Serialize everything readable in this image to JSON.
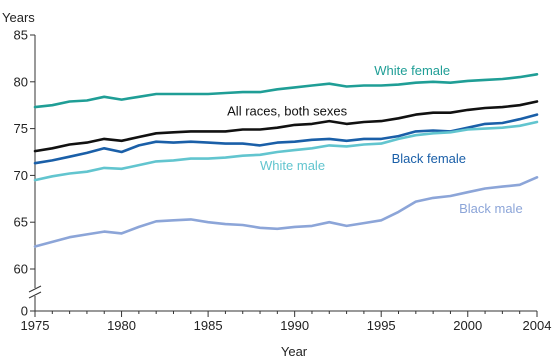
{
  "chart_data": {
    "type": "line",
    "title": "",
    "xlabel": "Year",
    "ylabel": "Years",
    "xlim": [
      1975,
      2004
    ],
    "ylim": [
      0,
      85
    ],
    "axis_break": [
      0,
      60
    ],
    "grid": false,
    "x_ticks": [
      1975,
      1980,
      1985,
      1990,
      1995,
      2000,
      2004
    ],
    "y_ticks": [
      0,
      60,
      65,
      70,
      75,
      80,
      85
    ],
    "x": [
      1975,
      1976,
      1977,
      1978,
      1979,
      1980,
      1981,
      1982,
      1983,
      1984,
      1985,
      1986,
      1987,
      1988,
      1989,
      1990,
      1991,
      1992,
      1993,
      1994,
      1995,
      1996,
      1997,
      1998,
      1999,
      2000,
      2001,
      2002,
      2003,
      2004
    ],
    "series": [
      {
        "name": "White female",
        "color": "#1f9e96",
        "label_pos": [
          1994.6,
          80.75
        ],
        "values": [
          77.3,
          77.5,
          77.9,
          78.0,
          78.4,
          78.1,
          78.4,
          78.7,
          78.7,
          78.7,
          78.7,
          78.8,
          78.9,
          78.9,
          79.2,
          79.4,
          79.6,
          79.8,
          79.5,
          79.6,
          79.6,
          79.7,
          79.9,
          80.0,
          79.9,
          80.1,
          80.2,
          80.3,
          80.5,
          80.8
        ]
      },
      {
        "name": "All races, both sexes",
        "color": "#111111",
        "label_pos": [
          1986.1,
          76.4
        ],
        "values": [
          72.6,
          72.9,
          73.3,
          73.5,
          73.9,
          73.7,
          74.1,
          74.5,
          74.6,
          74.7,
          74.7,
          74.7,
          74.9,
          74.9,
          75.1,
          75.4,
          75.5,
          75.8,
          75.5,
          75.7,
          75.8,
          76.1,
          76.5,
          76.7,
          76.7,
          77.0,
          77.2,
          77.3,
          77.5,
          77.9
        ]
      },
      {
        "name": "Black female",
        "color": "#1a5fa8",
        "label_pos": [
          1995.6,
          71.3
        ],
        "values": [
          71.3,
          71.6,
          72.0,
          72.4,
          72.9,
          72.5,
          73.2,
          73.6,
          73.5,
          73.6,
          73.5,
          73.4,
          73.4,
          73.2,
          73.5,
          73.6,
          73.8,
          73.9,
          73.7,
          73.9,
          73.9,
          74.2,
          74.7,
          74.8,
          74.7,
          75.1,
          75.5,
          75.6,
          76.0,
          76.5
        ]
      },
      {
        "name": "White male",
        "color": "#62c5cf",
        "label_pos": [
          1988.0,
          70.6
        ],
        "values": [
          69.5,
          69.9,
          70.2,
          70.4,
          70.8,
          70.7,
          71.1,
          71.5,
          71.6,
          71.8,
          71.8,
          71.9,
          72.1,
          72.2,
          72.5,
          72.7,
          72.9,
          73.2,
          73.1,
          73.3,
          73.4,
          73.9,
          74.3,
          74.5,
          74.6,
          74.9,
          75.0,
          75.1,
          75.3,
          75.7
        ]
      },
      {
        "name": "Black male",
        "color": "#8ca5d8",
        "label_pos": [
          1999.5,
          66.0
        ],
        "values": [
          62.4,
          62.9,
          63.4,
          63.7,
          64.0,
          63.8,
          64.5,
          65.1,
          65.2,
          65.3,
          65.0,
          64.8,
          64.7,
          64.4,
          64.3,
          64.5,
          64.6,
          65.0,
          64.6,
          64.9,
          65.2,
          66.1,
          67.2,
          67.6,
          67.8,
          68.2,
          68.6,
          68.8,
          69.0,
          69.8
        ]
      }
    ]
  }
}
